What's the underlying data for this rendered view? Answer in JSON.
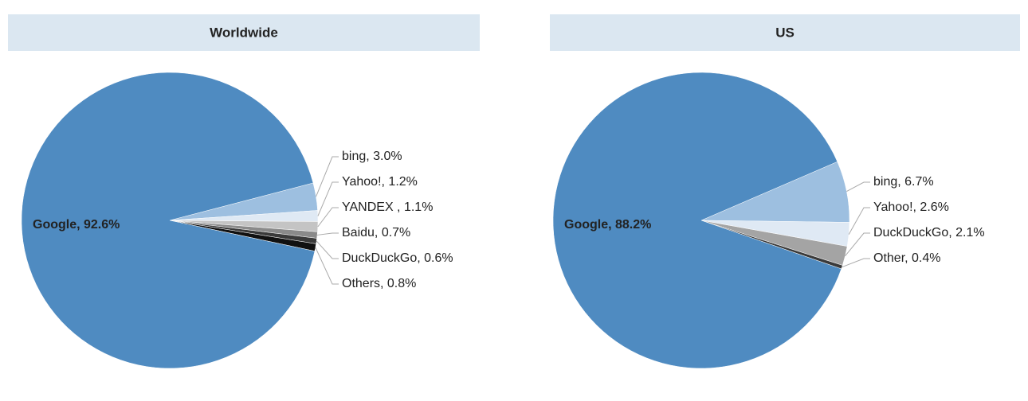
{
  "chart_data": [
    {
      "type": "pie",
      "title": "Worldwide",
      "values": [
        92.6,
        3.0,
        1.2,
        1.1,
        0.7,
        0.6,
        0.8
      ],
      "value_labels": [
        "Google, 92.6%",
        "bing, 3.0%",
        "Yahoo!, 1.2%",
        "YANDEX , 1.1%",
        "Baidu, 0.7%",
        "DuckDuckGo, 0.6%",
        "Others, 0.8%"
      ],
      "colors": [
        "#4f8bc1",
        "#9dbfe0",
        "#dfe9f4",
        "#c4c4c4",
        "#8a8a8a",
        "#3a3a3a",
        "#111111"
      ]
    },
    {
      "type": "pie",
      "title": "US",
      "values": [
        88.2,
        6.7,
        2.6,
        2.1,
        0.4
      ],
      "value_labels": [
        "Google, 88.2%",
        "bing, 6.7%",
        "Yahoo!, 2.6%",
        "DuckDuckGo, 2.1%",
        "Other, 0.4%"
      ],
      "colors": [
        "#4f8bc1",
        "#9dbfe0",
        "#dfe9f4",
        "#a4a4a4",
        "#3a3a3a"
      ]
    }
  ]
}
